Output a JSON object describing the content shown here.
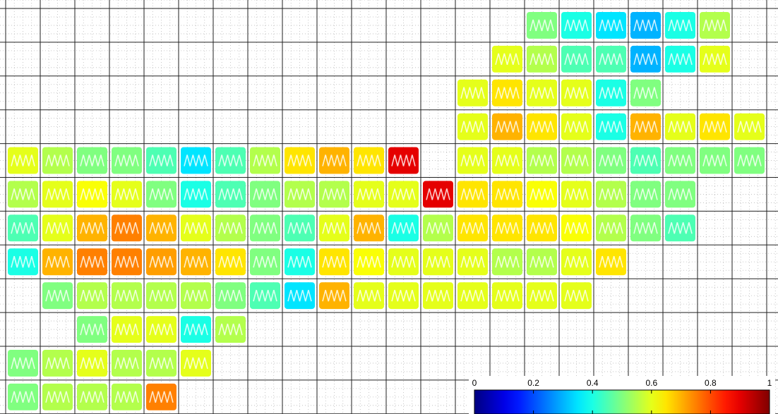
{
  "chart_data": {
    "type": "heatmap",
    "colormap": "jet",
    "values": [
      [
        null,
        null,
        null,
        null,
        null,
        null,
        null,
        null,
        null,
        null,
        null,
        null,
        null,
        null,
        null,
        0.5,
        0.4,
        0.35,
        0.3,
        0.4,
        0.55,
        null
      ],
      [
        null,
        null,
        null,
        null,
        null,
        null,
        null,
        null,
        null,
        null,
        null,
        null,
        null,
        null,
        0.6,
        0.55,
        0.45,
        0.45,
        0.3,
        0.4,
        0.6,
        null
      ],
      [
        null,
        null,
        null,
        null,
        null,
        null,
        null,
        null,
        null,
        null,
        null,
        null,
        null,
        0.6,
        0.65,
        0.6,
        0.6,
        0.4,
        0.5,
        null,
        null,
        null
      ],
      [
        null,
        null,
        null,
        null,
        null,
        null,
        null,
        null,
        null,
        null,
        null,
        null,
        null,
        0.6,
        0.7,
        0.65,
        0.6,
        0.4,
        0.7,
        0.6,
        0.65,
        0.6
      ],
      [
        0.6,
        0.55,
        0.5,
        0.5,
        0.45,
        0.35,
        0.45,
        0.55,
        0.65,
        0.7,
        0.65,
        0.9,
        null,
        0.6,
        0.6,
        0.55,
        0.55,
        0.5,
        0.45,
        0.5,
        0.5,
        0.5
      ],
      [
        0.55,
        0.6,
        0.62,
        0.6,
        0.5,
        0.4,
        0.45,
        0.5,
        0.55,
        0.55,
        0.6,
        0.6,
        0.9,
        0.65,
        0.65,
        0.62,
        0.6,
        0.55,
        0.5,
        0.5,
        null,
        null
      ],
      [
        0.45,
        0.6,
        0.7,
        0.75,
        0.7,
        0.6,
        0.55,
        0.5,
        0.45,
        0.6,
        0.7,
        0.4,
        0.55,
        0.65,
        0.65,
        0.65,
        0.62,
        0.55,
        0.5,
        0.45,
        null,
        null
      ],
      [
        0.4,
        0.7,
        0.75,
        0.75,
        0.72,
        0.7,
        0.65,
        0.5,
        0.4,
        0.65,
        0.62,
        0.6,
        0.6,
        0.6,
        0.55,
        0.55,
        0.6,
        0.65,
        null,
        null,
        null,
        null
      ],
      [
        null,
        0.5,
        0.55,
        0.55,
        0.55,
        0.55,
        0.5,
        0.45,
        0.35,
        0.7,
        0.6,
        0.6,
        0.6,
        0.6,
        0.6,
        0.6,
        0.6,
        null,
        null,
        null,
        null,
        null
      ],
      [
        null,
        null,
        0.5,
        0.6,
        0.6,
        0.4,
        0.55,
        null,
        null,
        null,
        null,
        null,
        null,
        null,
        null,
        null,
        null,
        null,
        null,
        null,
        null,
        null
      ],
      [
        0.5,
        0.55,
        0.6,
        0.55,
        0.55,
        0.6,
        null,
        null,
        null,
        null,
        null,
        null,
        null,
        null,
        null,
        null,
        null,
        null,
        null,
        null,
        null,
        null
      ],
      [
        0.5,
        0.55,
        0.55,
        0.55,
        0.75,
        null,
        null,
        null,
        null,
        null,
        null,
        null,
        null,
        null,
        null,
        null,
        null,
        null,
        null,
        null,
        null,
        null
      ]
    ],
    "colorbar": {
      "lim": [
        0,
        1
      ],
      "ticks": [
        0,
        0.2,
        0.4,
        0.6,
        0.8,
        1
      ]
    }
  }
}
